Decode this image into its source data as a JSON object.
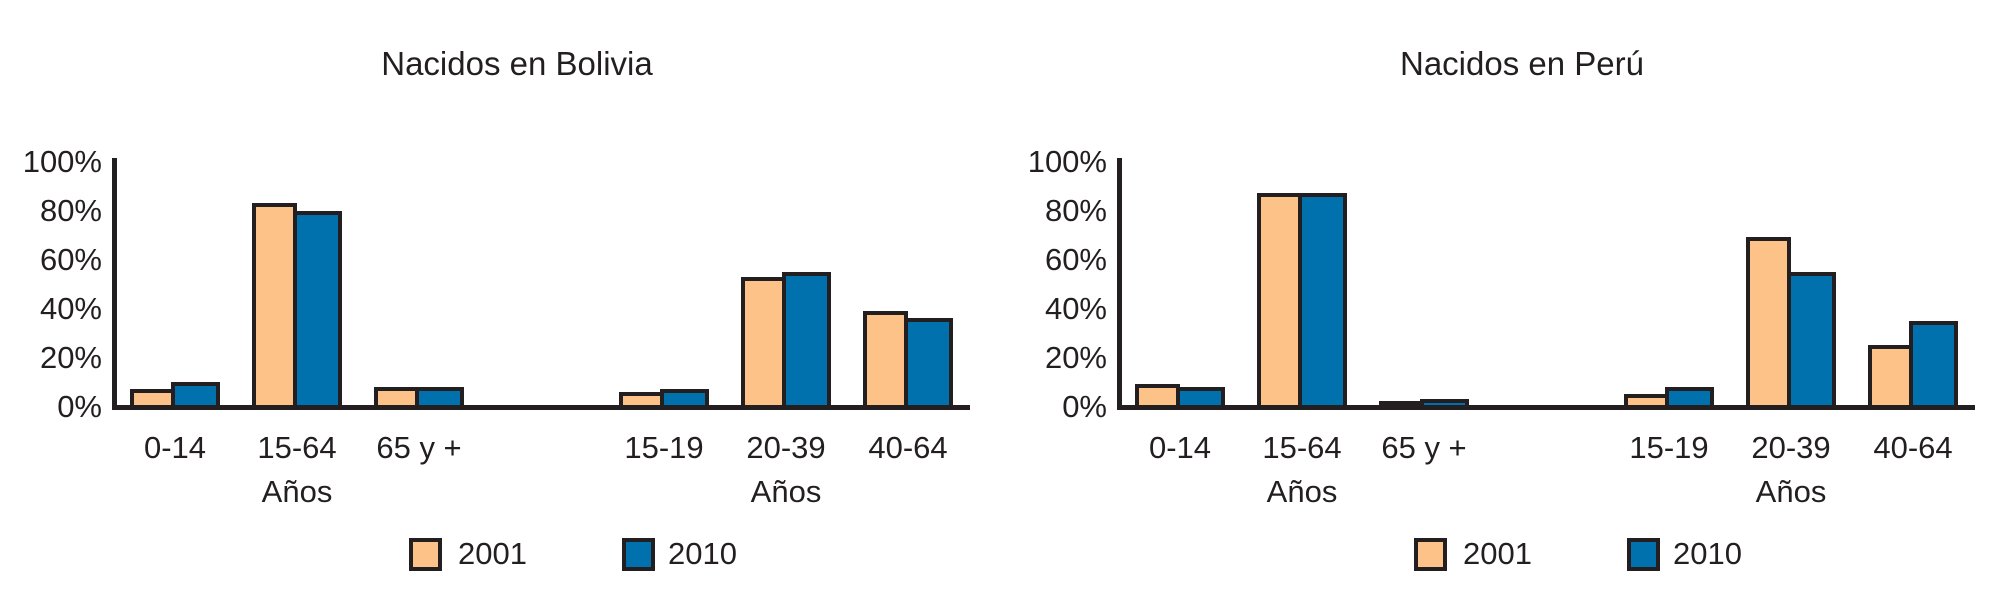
{
  "legend": {
    "series": [
      "2001",
      "2010"
    ],
    "colors": {
      "2001": "#FCC287",
      "2010": "#0071AC",
      "outline": "#231F20"
    }
  },
  "chart_data": [
    {
      "type": "bar",
      "title": "Nacidos en Bolivia",
      "categories": [
        "0-14",
        "15-64",
        "65 y +",
        "15-19",
        "20-39",
        "40-64"
      ],
      "group_labels": [
        "Años",
        "Años"
      ],
      "groups": [
        [
          0,
          1,
          2
        ],
        [
          3,
          4,
          5
        ]
      ],
      "series": [
        {
          "name": "2001",
          "values": [
            8,
            84,
            9,
            7,
            54,
            40
          ]
        },
        {
          "name": "2010",
          "values": [
            11,
            81,
            9,
            8,
            56,
            37
          ]
        }
      ],
      "yticks": [
        "0%",
        "20%",
        "40%",
        "60%",
        "80%",
        "100%"
      ],
      "ylim": [
        0,
        100
      ],
      "unit": "%",
      "grid": false,
      "legend_position": "bottom"
    },
    {
      "type": "bar",
      "title": "Nacidos en Perú",
      "categories": [
        "0-14",
        "15-64",
        "65 y +",
        "15-19",
        "20-39",
        "40-64"
      ],
      "group_labels": [
        "Años",
        "Años"
      ],
      "groups": [
        [
          0,
          1,
          2
        ],
        [
          3,
          4,
          5
        ]
      ],
      "series": [
        {
          "name": "2001",
          "values": [
            10,
            88,
            2,
            6,
            70,
            26
          ]
        },
        {
          "name": "2010",
          "values": [
            9,
            88,
            4,
            9,
            56,
            36
          ]
        }
      ],
      "yticks": [
        "0%",
        "20%",
        "40%",
        "60%",
        "80%",
        "100%"
      ],
      "ylim": [
        0,
        100
      ],
      "unit": "%",
      "grid": false,
      "legend_position": "bottom"
    }
  ]
}
